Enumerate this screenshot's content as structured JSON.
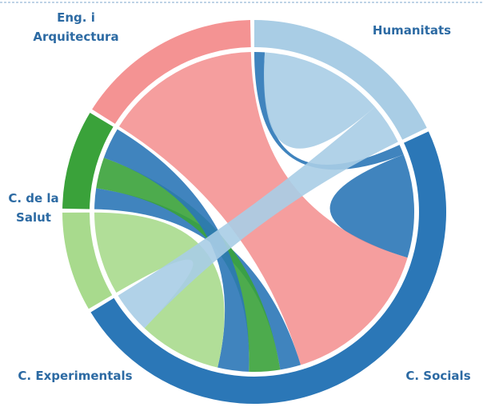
{
  "chart_data": {
    "type": "chord",
    "groups": [
      {
        "name": "Humanitats",
        "color": "#a9cde5"
      },
      {
        "name": "C. Socials",
        "color": "#2b77b7"
      },
      {
        "name": "C. Experimentals",
        "color": "#a8da8d"
      },
      {
        "name": "C. de la Salut",
        "color": "#3aa23a"
      },
      {
        "name": "Eng. i Arquitectura",
        "color": "#f49393"
      }
    ],
    "chords": [
      {
        "source": 0,
        "target": 1,
        "value": 1,
        "color": "#2b77b7"
      },
      {
        "source": 0,
        "target": 0,
        "value": 6,
        "color": "#a9cde5"
      },
      {
        "source": 1,
        "target": 1,
        "value": 5,
        "color": "#2b77b7"
      },
      {
        "source": 4,
        "target": 1,
        "value": 15,
        "color": "#f49393"
      },
      {
        "source": 3,
        "target": 1,
        "value": 2,
        "color": "#2b77b7"
      },
      {
        "source": 3,
        "target": 1,
        "value": 3,
        "color": "#3aa23a"
      },
      {
        "source": 3,
        "target": 1,
        "value": 3,
        "color": "#2b77b7"
      },
      {
        "source": 2,
        "target": 1,
        "value": 8,
        "color": "#a8da8d"
      },
      {
        "source": 0,
        "target": 1,
        "value": 4,
        "color": "#a9cde5"
      }
    ]
  }
}
